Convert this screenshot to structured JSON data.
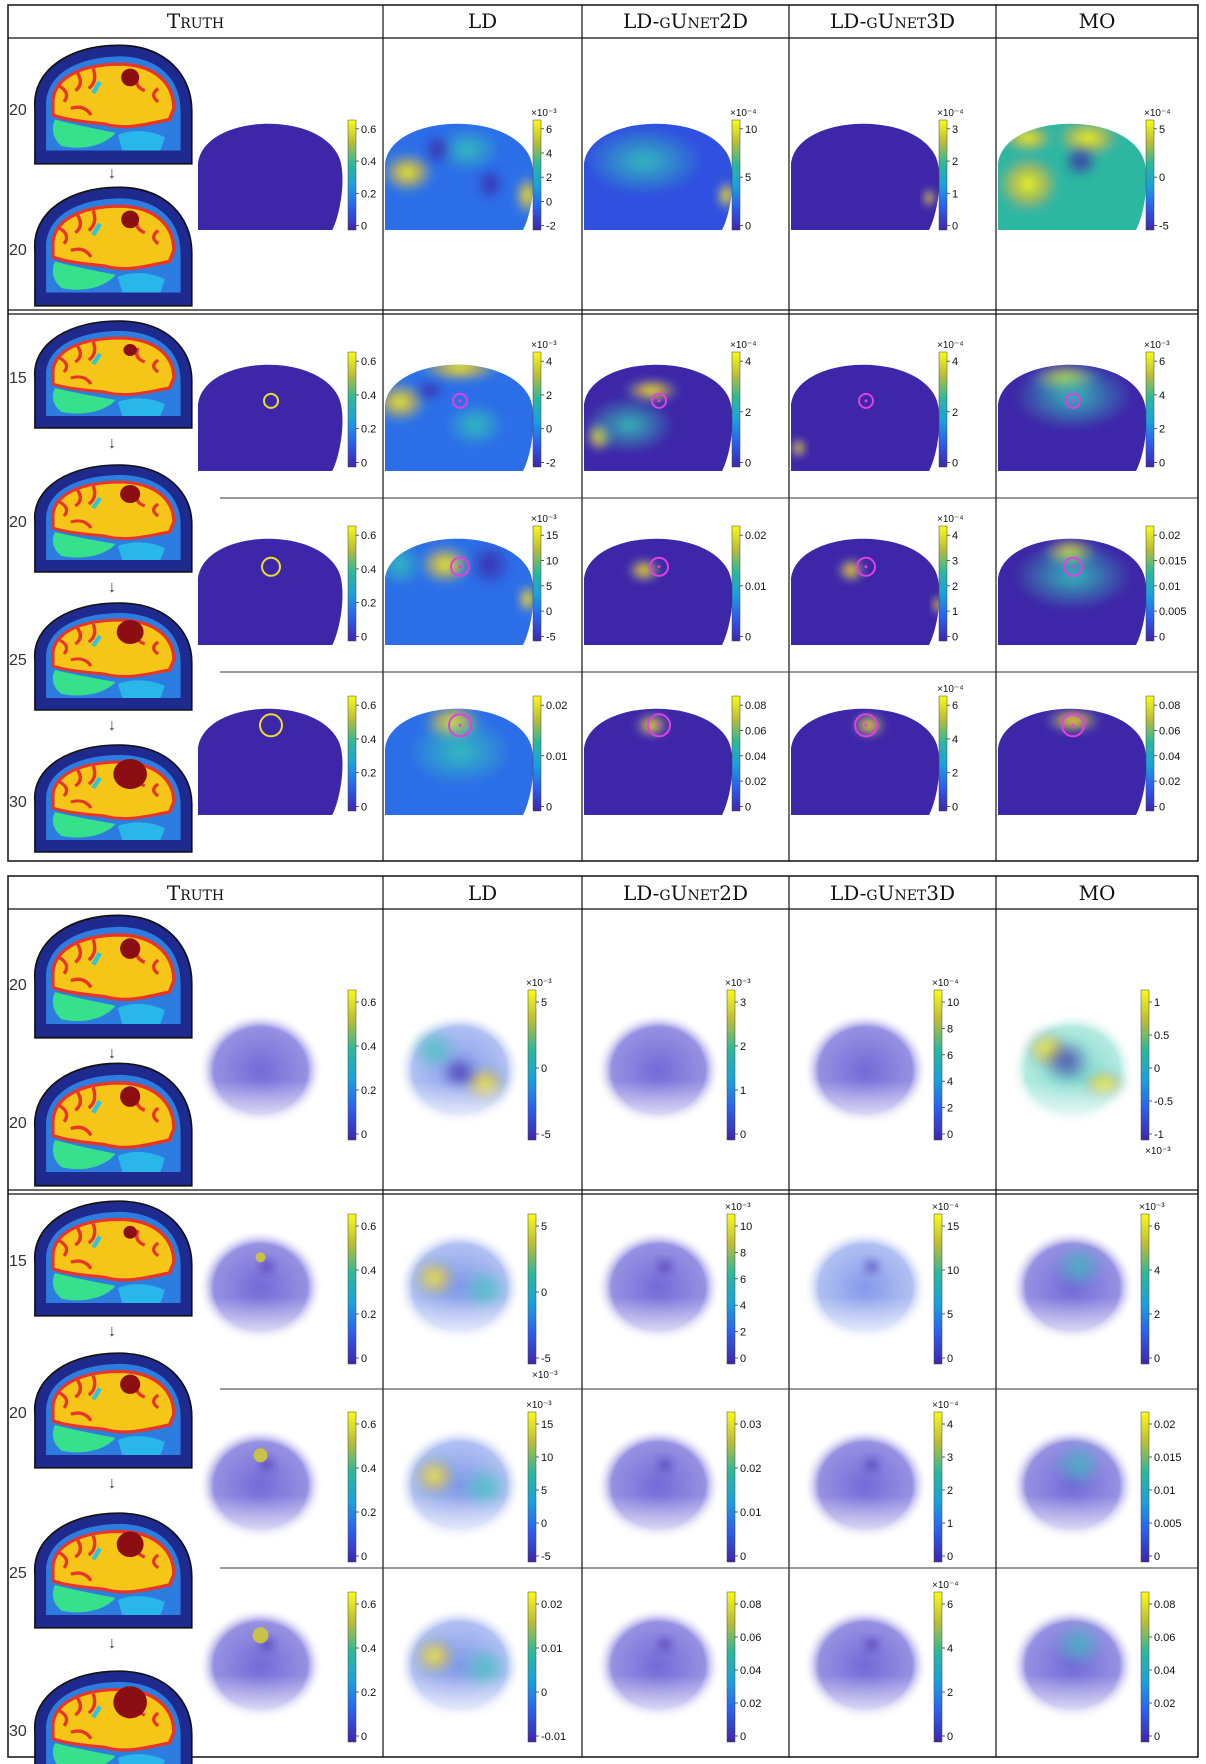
{
  "columns": [
    "Truth",
    "LD",
    "LD-gUnet2D",
    "LD-gUnet3D",
    "MO"
  ],
  "panels": [
    {
      "view": "2d",
      "stationary_case": {
        "truth_sizes": [
          "20",
          "20"
        ],
        "colorbars": [
          {
            "ticks": [
              "0.6",
              "0.4",
              "0.2",
              "0"
            ],
            "exponent": ""
          },
          {
            "ticks": [
              "6",
              "4",
              "2",
              "0",
              "-2"
            ],
            "exponent": "×10⁻³"
          },
          {
            "ticks": [
              "10",
              "5",
              "0"
            ],
            "exponent": "×10⁻⁴"
          },
          {
            "ticks": [
              "3",
              "2",
              "1",
              "0"
            ],
            "exponent": "×10⁻⁴"
          },
          {
            "ticks": [
              "5",
              "0",
              "-5"
            ],
            "exponent": "×10⁻⁴"
          }
        ]
      },
      "growing_case": {
        "truth_sizes": [
          "15",
          "20",
          "25",
          "30"
        ],
        "rows": [
          {
            "colorbars": [
              {
                "ticks": [
                  "0.6",
                  "0.4",
                  "0.2",
                  "0"
                ],
                "exponent": ""
              },
              {
                "ticks": [
                  "4",
                  "2",
                  "0",
                  "-2"
                ],
                "exponent": "×10⁻³"
              },
              {
                "ticks": [
                  "4",
                  "2",
                  "0"
                ],
                "exponent": "×10⁻⁴"
              },
              {
                "ticks": [
                  "4",
                  "2",
                  "0"
                ],
                "exponent": "×10⁻⁴"
              },
              {
                "ticks": [
                  "6",
                  "4",
                  "2",
                  "0"
                ],
                "exponent": "×10⁻³"
              }
            ]
          },
          {
            "colorbars": [
              {
                "ticks": [
                  "0.6",
                  "0.4",
                  "0.2",
                  "0"
                ],
                "exponent": ""
              },
              {
                "ticks": [
                  "15",
                  "10",
                  "5",
                  "0",
                  "-5"
                ],
                "exponent": "×10⁻³"
              },
              {
                "ticks": [
                  "0.02",
                  "0.01",
                  "0"
                ],
                "exponent": ""
              },
              {
                "ticks": [
                  "4",
                  "3",
                  "2",
                  "1",
                  "0"
                ],
                "exponent": "×10⁻⁴"
              },
              {
                "ticks": [
                  "0.02",
                  "0.015",
                  "0.01",
                  "0.005",
                  "0"
                ],
                "exponent": ""
              }
            ]
          },
          {
            "colorbars": [
              {
                "ticks": [
                  "0.6",
                  "0.4",
                  "0.2",
                  "0"
                ],
                "exponent": ""
              },
              {
                "ticks": [
                  "0.02",
                  "0.01",
                  "0"
                ],
                "exponent": ""
              },
              {
                "ticks": [
                  "0.08",
                  "0.06",
                  "0.04",
                  "0.02",
                  "0"
                ],
                "exponent": ""
              },
              {
                "ticks": [
                  "6",
                  "4",
                  "2",
                  "0"
                ],
                "exponent": "×10⁻⁴"
              },
              {
                "ticks": [
                  "0.08",
                  "0.06",
                  "0.04",
                  "0.02",
                  "0"
                ],
                "exponent": ""
              }
            ]
          }
        ]
      }
    },
    {
      "view": "3d",
      "stationary_case": {
        "truth_sizes": [
          "20",
          "20"
        ],
        "colorbars": [
          {
            "ticks": [
              "0.6",
              "0.4",
              "0.2",
              "0"
            ],
            "exponent": ""
          },
          {
            "ticks": [
              "5",
              "0",
              "-5"
            ],
            "exponent": "×10⁻³"
          },
          {
            "ticks": [
              "3",
              "2",
              "1",
              "0"
            ],
            "exponent": "×10⁻³"
          },
          {
            "ticks": [
              "10",
              "8",
              "6",
              "4",
              "2",
              "0"
            ],
            "exponent": "×10⁻⁴"
          },
          {
            "ticks": [
              "1",
              "0.5",
              "0",
              "-0.5",
              "-1"
            ],
            "exponent": "×10⁻³",
            "exponent_pos": "bottom"
          }
        ]
      },
      "growing_case": {
        "truth_sizes": [
          "15",
          "20",
          "25",
          "30"
        ],
        "rows": [
          {
            "colorbars": [
              {
                "ticks": [
                  "0.6",
                  "0.4",
                  "0.2",
                  "0"
                ],
                "exponent": ""
              },
              {
                "ticks": [
                  "5",
                  "0",
                  "-5"
                ],
                "exponent": "×10⁻³",
                "exponent_pos": "bottom"
              },
              {
                "ticks": [
                  "10",
                  "8",
                  "6",
                  "4",
                  "2",
                  "0"
                ],
                "exponent": "×10⁻³"
              },
              {
                "ticks": [
                  "15",
                  "10",
                  "5",
                  "0"
                ],
                "exponent": "×10⁻⁴"
              },
              {
                "ticks": [
                  "6",
                  "4",
                  "2",
                  "0"
                ],
                "exponent": "×10⁻³"
              }
            ]
          },
          {
            "colorbars": [
              {
                "ticks": [
                  "0.6",
                  "0.4",
                  "0.2",
                  "0"
                ],
                "exponent": ""
              },
              {
                "ticks": [
                  "15",
                  "10",
                  "5",
                  "0",
                  "-5"
                ],
                "exponent": "×10⁻³"
              },
              {
                "ticks": [
                  "0.03",
                  "0.02",
                  "0.01",
                  "0"
                ],
                "exponent": ""
              },
              {
                "ticks": [
                  "4",
                  "3",
                  "2",
                  "1",
                  "0"
                ],
                "exponent": "×10⁻⁴"
              },
              {
                "ticks": [
                  "0.02",
                  "0.015",
                  "0.01",
                  "0.005",
                  "0"
                ],
                "exponent": ""
              }
            ]
          },
          {
            "colorbars": [
              {
                "ticks": [
                  "0.6",
                  "0.4",
                  "0.2",
                  "0"
                ],
                "exponent": ""
              },
              {
                "ticks": [
                  "0.02",
                  "0.01",
                  "0",
                  "-0.01"
                ],
                "exponent": ""
              },
              {
                "ticks": [
                  "0.08",
                  "0.06",
                  "0.04",
                  "0.02",
                  "0"
                ],
                "exponent": ""
              },
              {
                "ticks": [
                  "6",
                  "4",
                  "2",
                  "0"
                ],
                "exponent": "×10⁻⁴"
              },
              {
                "ticks": [
                  "0.08",
                  "0.06",
                  "0.04",
                  "0.02",
                  "0"
                ],
                "exponent": ""
              }
            ]
          }
        ]
      }
    }
  ]
}
